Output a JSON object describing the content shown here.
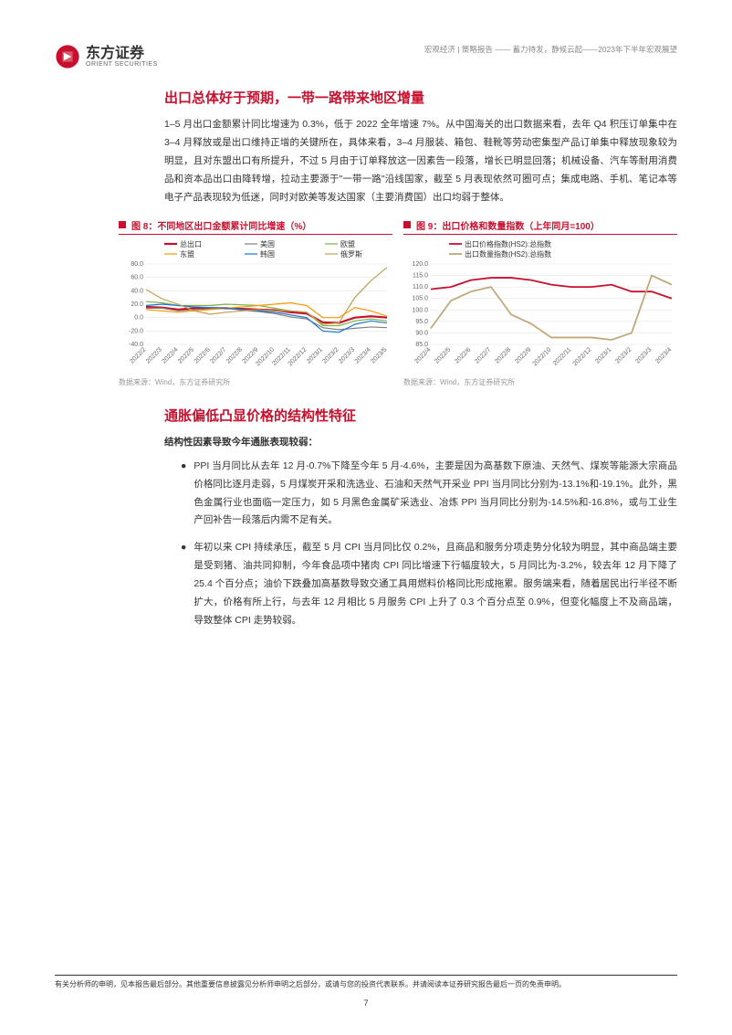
{
  "header": {
    "logo_cn": "东方证券",
    "logo_en": "ORIENT SECURITIES",
    "meta": "宏观经济 | 策略报告 —— 蓄力待发，静候云起——2023年下半年宏观展望"
  },
  "section1": {
    "title": "出口总体好于预期，一带一路带来地区增量",
    "para1": "1–5 月出口金额累计同比增速为 0.3%，低于 2022 全年增速 7%。从中国海关的出口数据来看，去年 Q4 积压订单集中在 3–4 月释放或是出口维持正增的关键所在，具体来看，3–4 月服装、箱包、鞋靴等劳动密集型产品订单集中释放现象较为明显，且对东盟出口有所提升，不过 5 月由于订单释放这一因素告一段落，增长已明显回落；机械设备、汽车等耐用消费品和资本品出口由降转增，拉动主要源于\"一带一路\"沿线国家，截至 5 月表现依然可圈可点；集成电路、手机、笔记本等电子产品表现较为低迷，同时对欧美等发达国家（主要消费国）出口均弱于整体。"
  },
  "chart8": {
    "title": "图 8：不同地区出口金额累计同比增速（%）",
    "source": "数据来源：Wind，东方证券研究所",
    "type": "line",
    "x_labels": [
      "2022/2",
      "2022/3",
      "2022/4",
      "2022/5",
      "2022/6",
      "2022/7",
      "2022/8",
      "2022/9",
      "2022/10",
      "2022/11",
      "2022/12",
      "2023/1",
      "2023/2",
      "2023/3",
      "2023/4",
      "2023/5"
    ],
    "ylim": [
      -40,
      80
    ],
    "yticks": [
      -40,
      -20,
      0,
      20,
      40,
      60,
      80
    ],
    "series": [
      {
        "name": "总出口",
        "color": "#c8102e",
        "width": 2.2,
        "data": [
          16,
          15,
          12,
          14,
          14,
          14,
          13,
          12,
          11,
          8,
          6,
          -7,
          -8,
          0,
          2,
          0
        ]
      },
      {
        "name": "美国",
        "color": "#808080",
        "width": 1.2,
        "data": [
          14,
          14,
          10,
          12,
          13,
          14,
          11,
          9,
          6,
          1,
          -2,
          -15,
          -18,
          -16,
          -14,
          -15
        ]
      },
      {
        "name": "欧盟",
        "color": "#7cb342",
        "width": 1.2,
        "data": [
          24,
          22,
          18,
          18,
          18,
          20,
          19,
          18,
          14,
          10,
          8,
          -12,
          -12,
          -5,
          -2,
          -5
        ]
      },
      {
        "name": "东盟",
        "color": "#ff9800",
        "width": 1.2,
        "data": [
          12,
          10,
          8,
          10,
          12,
          14,
          16,
          18,
          20,
          22,
          18,
          0,
          0,
          15,
          10,
          2
        ]
      },
      {
        "name": "韩国",
        "color": "#1976d2",
        "width": 1.2,
        "data": [
          18,
          20,
          18,
          16,
          15,
          14,
          12,
          10,
          8,
          4,
          0,
          -20,
          -22,
          -10,
          -5,
          -8
        ]
      },
      {
        "name": "俄罗斯",
        "color": "#c0a050",
        "width": 1.2,
        "data": [
          42,
          28,
          20,
          10,
          5,
          8,
          10,
          12,
          10,
          10,
          8,
          -10,
          -8,
          30,
          55,
          75
        ]
      }
    ],
    "grid_color": "#e0e0e0",
    "background_color": "#ffffff",
    "legend_pos": "top"
  },
  "chart9": {
    "title": "图 9：出口价格和数量指数（上年同月=100）",
    "source": "数据来源：Wind，东方证券研究所",
    "type": "line",
    "x_labels": [
      "2022/4",
      "2022/5",
      "2022/6",
      "2022/7",
      "2022/8",
      "2022/9",
      "2022/10",
      "2022/11",
      "2022/12",
      "2023/1",
      "2023/2",
      "2023/3",
      "2023/4"
    ],
    "ylim": [
      85,
      120
    ],
    "yticks": [
      85,
      90,
      95,
      100,
      105,
      110,
      115,
      120
    ],
    "series": [
      {
        "name": "出口价格指数(HS2):总指数",
        "color": "#c8102e",
        "width": 1.8,
        "data": [
          109,
          110,
          113,
          114,
          114,
          113,
          111,
          110,
          110,
          111,
          108,
          108,
          105
        ]
      },
      {
        "name": "出口数量指数(HS2):总指数",
        "color": "#c0a87a",
        "width": 1.8,
        "data": [
          92,
          104,
          108,
          110,
          98,
          94,
          88,
          88,
          88,
          87,
          90,
          115,
          111
        ]
      }
    ],
    "grid_color": "#e0e0e0",
    "background_color": "#ffffff",
    "legend_pos": "top"
  },
  "section2": {
    "title": "通胀偏低凸显价格的结构性特征",
    "intro": "结构性因素导致今年通胀表现较弱：",
    "bullets": [
      "PPI 当月同比从去年 12 月-0.7%下降至今年 5 月-4.6%，主要是因为高基数下原油、天然气、煤炭等能源大宗商品价格同比逐月走弱，5 月煤炭开采和洗选业、石油和天然气开采业 PPI 当月同比分别为-13.1%和-19.1%。此外，黑色金属行业也面临一定压力，如 5 月黑色金属矿采选业、冶炼 PPI 当月同比分别为-14.5%和-16.8%，或与工业生产回补告一段落后内需不足有关。",
      "年初以来 CPI 持续承压，截至 5 月 CPI 当月同比仅 0.2%，且商品和服务分项走势分化较为明显，其中商品端主要是受到猪、油共同抑制，今年食品项中猪肉 CPI 同比增速下行幅度较大，5 月同比为-3.2%，较去年 12 月下降了 25.4 个百分点；油价下跌叠加高基数导致交通工具用燃料价格同比形成拖累。服务端来看，随着居民出行半径不断扩大，价格有所上行，与去年 12 月相比 5 月服务 CPI 上升了 0.3 个百分点至 0.9%，但变化幅度上不及商品端，导致整体 CPI 走势较弱。"
    ]
  },
  "footer": {
    "disclaimer": "有关分析师的申明，见本报告最后部分。其他重要信息披露见分析师申明之后部分，或请与您的投资代表联系。并请阅读本证券研究报告最后一页的免责申明。",
    "page_num": "7"
  }
}
